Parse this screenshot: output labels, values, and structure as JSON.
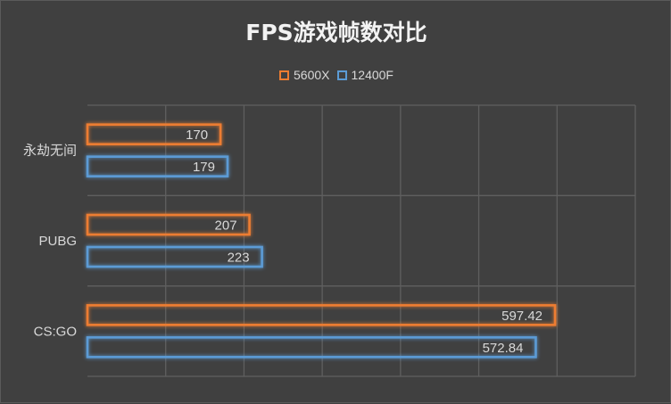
{
  "chart_data": {
    "type": "bar",
    "orientation": "horizontal",
    "title": "FPS游戏帧数对比",
    "categories": [
      "永劫无间",
      "PUBG",
      "CS:GO"
    ],
    "series": [
      {
        "name": "5600X",
        "values": [
          170,
          207,
          597.42
        ],
        "labels": [
          "170",
          "207",
          "597.42"
        ],
        "color": "#ed7d31"
      },
      {
        "name": "12400F",
        "values": [
          179,
          223,
          572.84
        ],
        "labels": [
          "179",
          "223",
          "572.84"
        ],
        "color": "#5b9bd5"
      }
    ],
    "xlim": [
      0,
      700
    ],
    "grid": true,
    "legend_position": "top"
  }
}
